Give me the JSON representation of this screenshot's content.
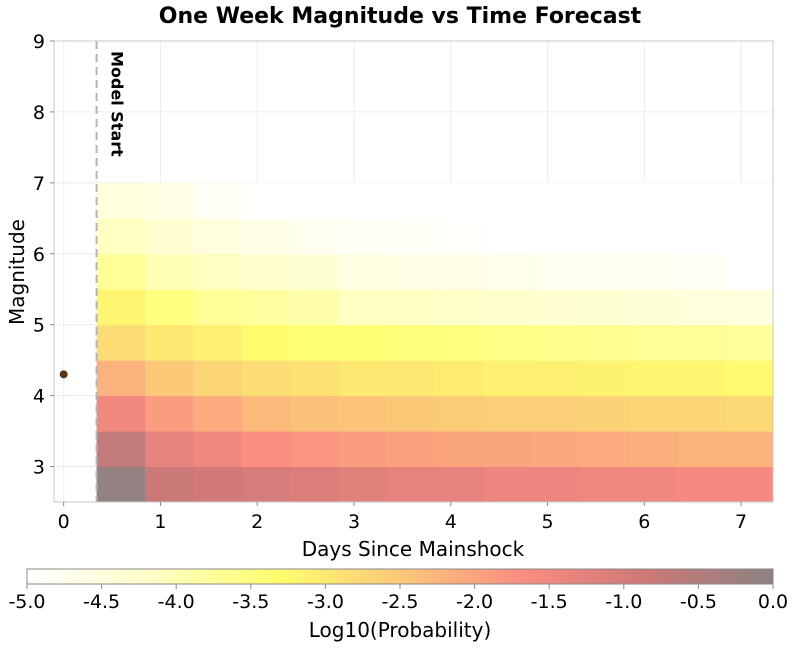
{
  "chart_data": {
    "type": "heatmap",
    "title": "One Week Magnitude vs Time Forecast",
    "xlabel": "Days Since Mainshock",
    "ylabel": "Magnitude",
    "xlim": [
      -0.1,
      7.33
    ],
    "ylim": [
      2.5,
      9
    ],
    "x_ticks": [
      "0",
      "1",
      "2",
      "3",
      "4",
      "5",
      "6",
      "7"
    ],
    "y_ticks": [
      "3",
      "4",
      "5",
      "6",
      "7",
      "8",
      "9"
    ],
    "grid": true,
    "model_start": {
      "x": 0.34,
      "label": "Model Start"
    },
    "mainshock": {
      "x": 0,
      "y": 4.3,
      "color": "#5a3410"
    },
    "x_bins": [
      0.34,
      0.84,
      1.34,
      1.84,
      2.34,
      2.84,
      3.34,
      3.84,
      4.34,
      4.84,
      5.34,
      5.84,
      6.34,
      6.84,
      7.34
    ],
    "mag_bins": [
      2.5,
      3.0,
      3.5,
      4.0,
      4.5,
      5.0,
      5.5,
      6.0,
      6.5,
      7.0
    ],
    "log10_probability": [
      [
        -0.1,
        -0.8,
        -0.9,
        -1.0,
        -1.1,
        -1.2,
        -1.3,
        -1.3,
        -1.4,
        -1.4,
        -1.5,
        -1.5,
        -1.6,
        -1.6
      ],
      [
        -0.7,
        -1.3,
        -1.5,
        -1.7,
        -1.8,
        -1.9,
        -1.95,
        -2.0,
        -2.0,
        -2.05,
        -2.1,
        -2.15,
        -2.2,
        -2.2
      ],
      [
        -1.5,
        -1.9,
        -2.1,
        -2.3,
        -2.4,
        -2.45,
        -2.5,
        -2.55,
        -2.6,
        -2.6,
        -2.65,
        -2.7,
        -2.7,
        -2.75
      ],
      [
        -2.2,
        -2.5,
        -2.7,
        -2.8,
        -2.9,
        -3.0,
        -3.0,
        -3.05,
        -3.1,
        -3.1,
        -3.15,
        -3.2,
        -3.2,
        -3.25
      ],
      [
        -2.8,
        -3.0,
        -3.1,
        -3.3,
        -3.4,
        -3.4,
        -3.45,
        -3.5,
        -3.55,
        -3.6,
        -3.65,
        -3.7,
        -3.7,
        -3.75
      ],
      [
        -3.2,
        -3.5,
        -3.7,
        -3.8,
        -3.9,
        -4.1,
        -4.1,
        -4.2,
        -4.25,
        -4.3,
        -4.35,
        -4.4,
        -4.45,
        -4.5
      ],
      [
        -3.7,
        -4.0,
        -4.1,
        -4.25,
        -4.35,
        -4.55,
        -4.6,
        -4.65,
        -4.7,
        -4.75,
        -4.8,
        -4.8,
        -4.85,
        -5.0
      ],
      [
        -4.1,
        -4.3,
        -4.5,
        -4.65,
        -4.75,
        -4.85,
        -4.9,
        -4.95,
        -5.0,
        -5.0,
        -5.0,
        -5.0,
        -5.0,
        -5.0
      ],
      [
        -4.45,
        -4.6,
        -4.85,
        -5.0,
        -5.0,
        -5.0,
        -5.0,
        -5.0,
        -5.0,
        -5.0,
        -5.0,
        -5.0,
        -5.0,
        -5.0
      ]
    ],
    "colorbar": {
      "label": "Log10(Probability)",
      "range": [
        -5.0,
        0.0
      ],
      "ticks": [
        "-5.0",
        "-4.5",
        "-4.0",
        "-3.5",
        "-3.0",
        "-2.5",
        "-2.0",
        "-1.5",
        "-1.0",
        "-0.5",
        "0.0"
      ],
      "colors": [
        "#ffffff",
        "#ffffc8",
        "#ffff6e",
        "#fbc878",
        "#fa8c82",
        "#cd7878",
        "#8c8282"
      ]
    }
  }
}
